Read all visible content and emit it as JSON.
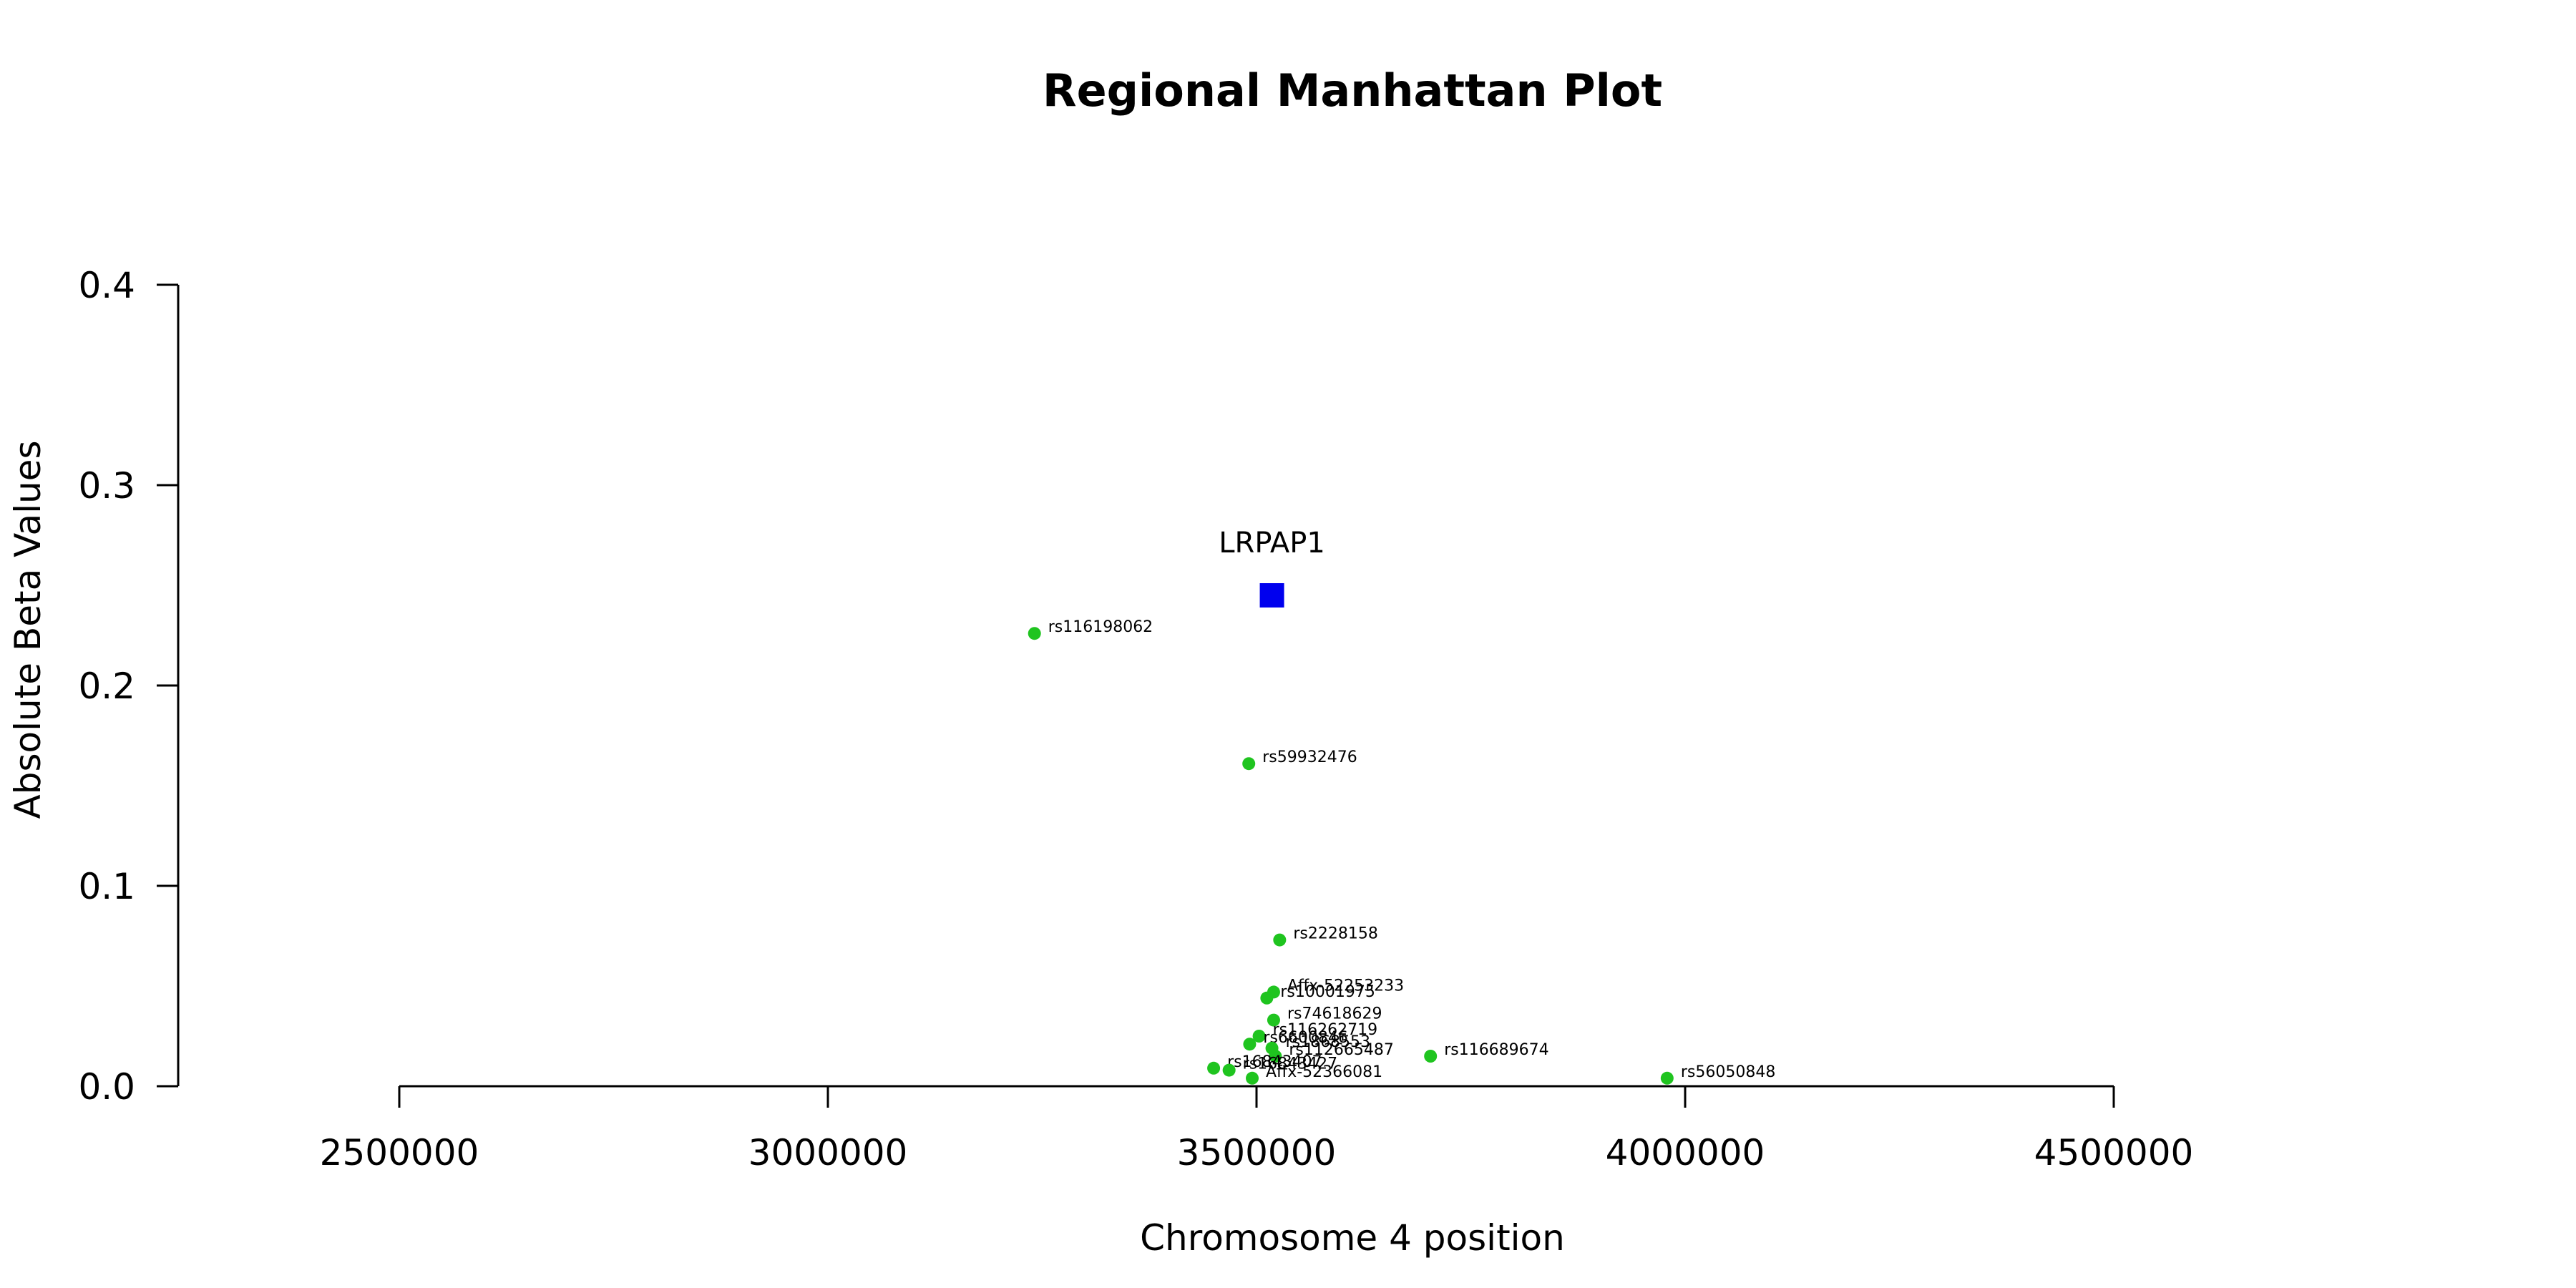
{
  "chart_data": {
    "type": "scatter",
    "title": "Regional Manhattan Plot",
    "xlabel": "Chromosome 4 position",
    "ylabel": "Absolute Beta Values",
    "xlim": [
      2500000,
      4500000
    ],
    "ylim": [
      0,
      0.4
    ],
    "x_ticks": [
      "2500000",
      "3000000",
      "3500000",
      "4000000",
      "4500000"
    ],
    "y_ticks": [
      "0.0",
      "0.1",
      "0.2",
      "0.3",
      "0.4"
    ],
    "grid": false,
    "colors": {
      "snp": "#1fc41f",
      "gene": "#0000ee"
    },
    "gene": {
      "name": "LRPAP1",
      "x": 3518000,
      "y": 0.245
    },
    "points": [
      {
        "label": "rs116198062",
        "x": 3241000,
        "y": 0.226
      },
      {
        "label": "rs59932476",
        "x": 3491000,
        "y": 0.161
      },
      {
        "label": "rs2228158",
        "x": 3527000,
        "y": 0.073
      },
      {
        "label": "Affx-52253233",
        "x": 3520000,
        "y": 0.047
      },
      {
        "label": "rs10001975",
        "x": 3512000,
        "y": 0.044
      },
      {
        "label": "rs74618629",
        "x": 3520000,
        "y": 0.033
      },
      {
        "label": "rs116262719",
        "x": 3503000,
        "y": 0.025
      },
      {
        "label": "rs6600846",
        "x": 3492000,
        "y": 0.021
      },
      {
        "label": "rs1868553",
        "x": 3518000,
        "y": 0.019
      },
      {
        "label": "rs112665487",
        "x": 3522000,
        "y": 0.015
      },
      {
        "label": "rs116689674",
        "x": 3703000,
        "y": 0.015
      },
      {
        "label": "rs56050848",
        "x": 3979000,
        "y": 0.004
      },
      {
        "label": "rs16843407",
        "x": 3450000,
        "y": 0.009
      },
      {
        "label": "rs16843427",
        "x": 3468000,
        "y": 0.008
      },
      {
        "label": "Affx-52366081",
        "x": 3495000,
        "y": 0.004
      }
    ]
  }
}
